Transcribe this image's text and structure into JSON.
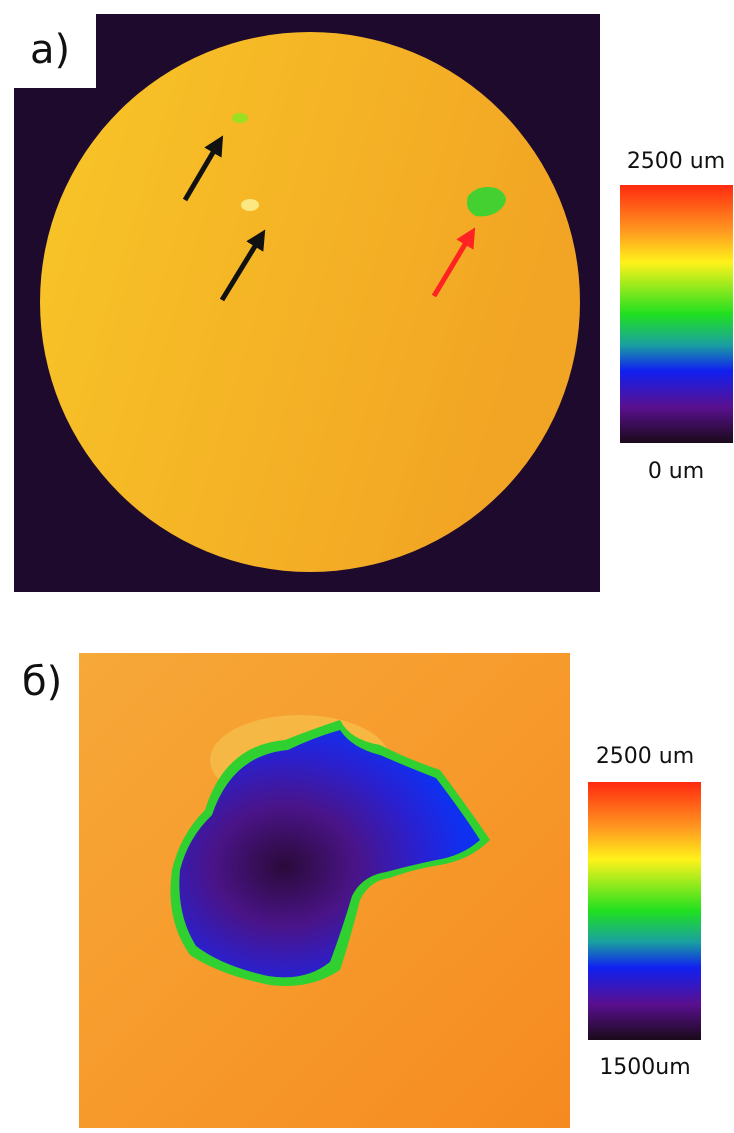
{
  "panels": [
    {
      "label": "a)",
      "colorbar_max": "2500 um",
      "colorbar_min": "0 um"
    },
    {
      "label": "б)",
      "colorbar_max": "2500 um",
      "colorbar_min": "1500um"
    }
  ]
}
